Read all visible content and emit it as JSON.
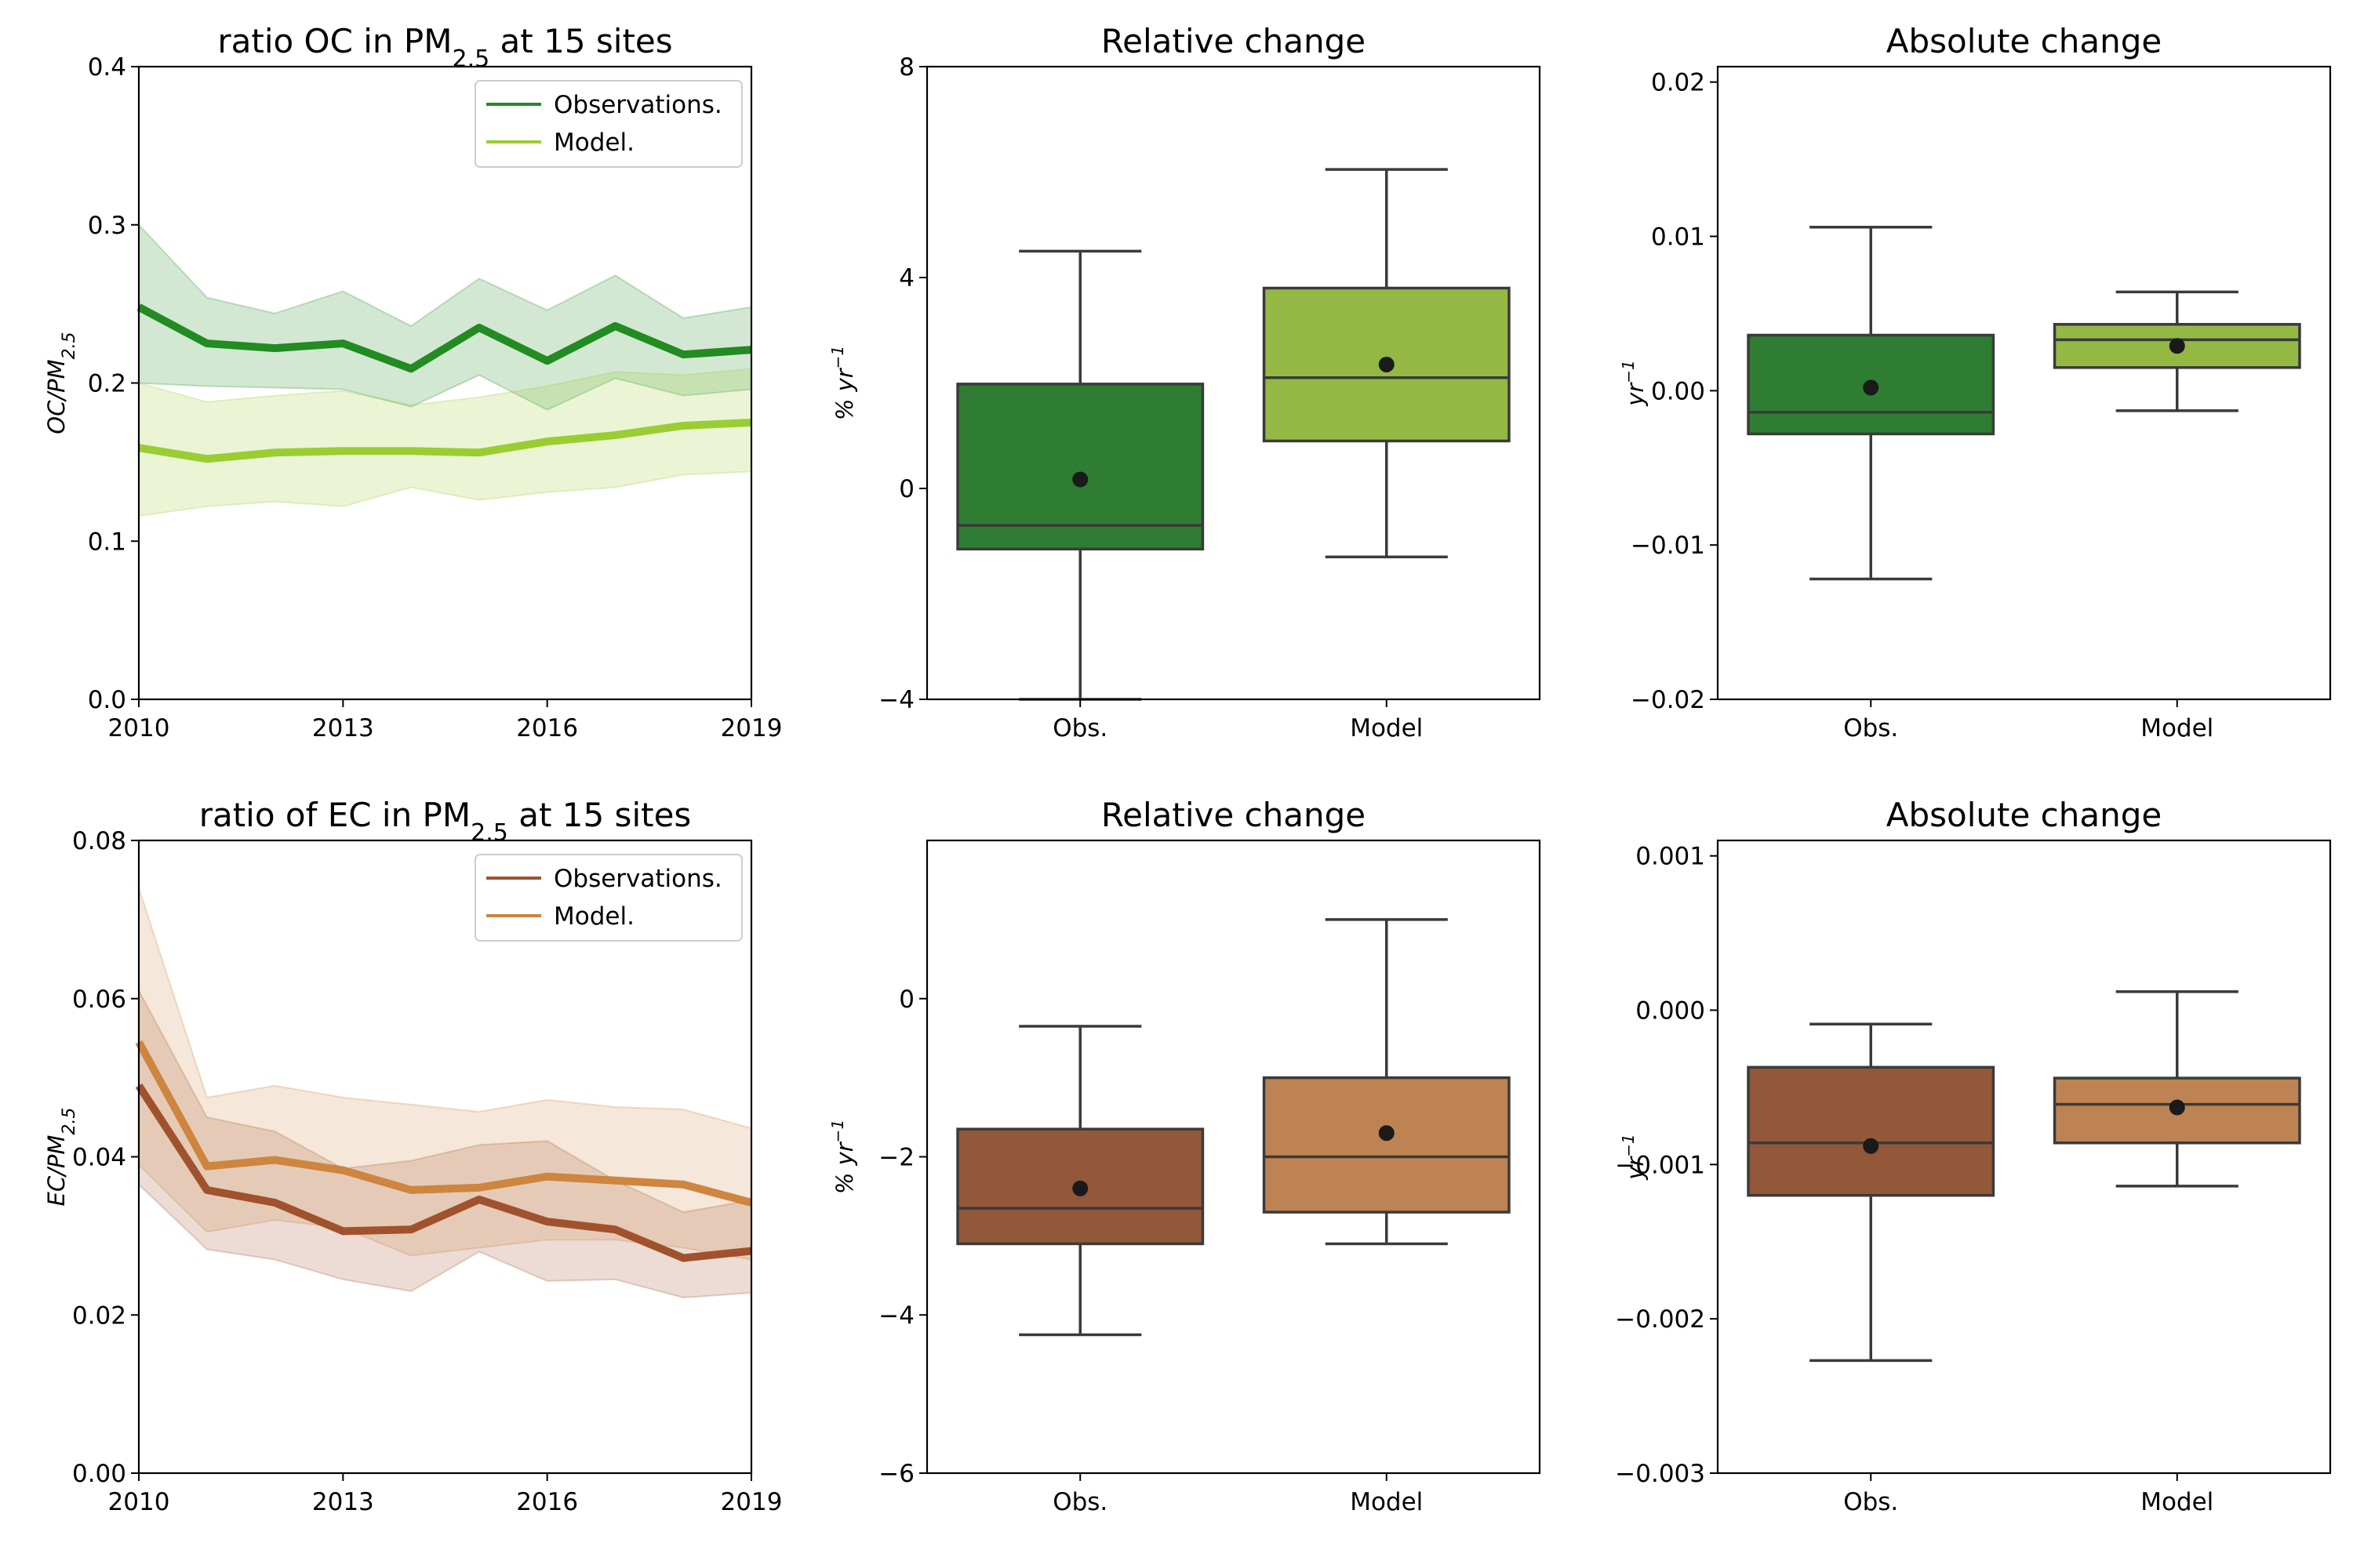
{
  "chart_data": [
    {
      "type": "line",
      "title": "ratio OC in PM",
      "title_sub": "2.5",
      "title_post": " at 15 sites",
      "ylabel": "OC/PM",
      "ylabel_sub": "2.5",
      "xlabel": "",
      "x": [
        2010,
        2011,
        2012,
        2013,
        2014,
        2015,
        2016,
        2017,
        2018,
        2019
      ],
      "xticks": [
        2010,
        2013,
        2016,
        2019
      ],
      "xlim": [
        2010,
        2019
      ],
      "ylim": [
        0.0,
        0.4
      ],
      "yticks": [
        "0.0",
        "0.1",
        "0.2",
        "0.3",
        "0.4"
      ],
      "legend_position": "top-right",
      "series": [
        {
          "name": "Observations.",
          "color": "#228b22",
          "values": [
            0.248,
            0.225,
            0.222,
            0.225,
            0.209,
            0.235,
            0.214,
            0.236,
            0.218,
            0.221
          ],
          "lower": [
            0.2,
            0.198,
            0.197,
            0.196,
            0.185,
            0.205,
            0.183,
            0.203,
            0.192,
            0.196
          ],
          "upper": [
            0.3,
            0.254,
            0.244,
            0.258,
            0.236,
            0.266,
            0.246,
            0.268,
            0.241,
            0.248
          ]
        },
        {
          "name": "Model.",
          "color": "#9acd32",
          "values": [
            0.159,
            0.152,
            0.156,
            0.157,
            0.157,
            0.156,
            0.163,
            0.167,
            0.173,
            0.175
          ],
          "lower": [
            0.116,
            0.122,
            0.125,
            0.122,
            0.134,
            0.126,
            0.131,
            0.134,
            0.142,
            0.144
          ],
          "upper": [
            0.2,
            0.188,
            0.192,
            0.195,
            0.186,
            0.191,
            0.198,
            0.207,
            0.205,
            0.209
          ]
        }
      ]
    },
    {
      "type": "box",
      "title": "Relative change",
      "ylabel": "% yr",
      "ylabel_sup": "−1",
      "categories": [
        "Obs.",
        "Model"
      ],
      "ylim": [
        -4,
        8
      ],
      "yticks": [
        "−4",
        "0",
        "4",
        "8"
      ],
      "boxes": [
        {
          "whislo": -4.0,
          "q1": -1.15,
          "med": -0.7,
          "q3": 1.98,
          "whishi": 4.5,
          "mean": 0.17,
          "color": "#2e7d32"
        },
        {
          "whislo": -1.3,
          "q1": 0.9,
          "med": 2.1,
          "q3": 3.8,
          "whishi": 6.05,
          "mean": 2.35,
          "color": "#93b944"
        }
      ]
    },
    {
      "type": "box",
      "title": "Absolute change",
      "ylabel": "yr",
      "ylabel_sup": "−1",
      "categories": [
        "Obs.",
        "Model"
      ],
      "ylim": [
        -0.02,
        0.021
      ],
      "yticks": [
        "−0.02",
        "−0.01",
        "0.00",
        "0.01",
        "0.02"
      ],
      "boxes": [
        {
          "whislo": -0.0122,
          "q1": -0.0028,
          "med": -0.0014,
          "q3": 0.0036,
          "whishi": 0.0106,
          "mean": 0.0002,
          "color": "#2e7d32"
        },
        {
          "whislo": -0.0013,
          "q1": 0.0015,
          "med": 0.0033,
          "q3": 0.0043,
          "whishi": 0.0064,
          "mean": 0.0029,
          "color": "#93b944"
        }
      ]
    },
    {
      "type": "line",
      "title": "ratio of EC in PM",
      "title_sub": "2.5",
      "title_post": " at 15 sites",
      "ylabel": "EC/PM",
      "ylabel_sub": "2.5",
      "xlabel": "",
      "x": [
        2010,
        2011,
        2012,
        2013,
        2014,
        2015,
        2016,
        2017,
        2018,
        2019
      ],
      "xticks": [
        2010,
        2013,
        2016,
        2019
      ],
      "xlim": [
        2010,
        2019
      ],
      "ylim": [
        0.0,
        0.08
      ],
      "yticks": [
        "0.00",
        "0.02",
        "0.04",
        "0.06",
        "0.08"
      ],
      "legend_position": "top-right",
      "series": [
        {
          "name": "Observations.",
          "color": "#a0522d",
          "values": [
            0.049,
            0.0358,
            0.0342,
            0.0306,
            0.0308,
            0.0346,
            0.0318,
            0.0308,
            0.0272,
            0.0281
          ],
          "lower": [
            0.0365,
            0.0283,
            0.027,
            0.0245,
            0.023,
            0.028,
            0.0243,
            0.0245,
            0.0222,
            0.0228
          ],
          "upper": [
            0.061,
            0.045,
            0.0432,
            0.0385,
            0.0395,
            0.0415,
            0.042,
            0.037,
            0.033,
            0.0345
          ]
        },
        {
          "name": "Model.",
          "color": "#cd853f",
          "values": [
            0.0545,
            0.0388,
            0.0396,
            0.0383,
            0.0358,
            0.0361,
            0.0375,
            0.037,
            0.0365,
            0.0342
          ],
          "lower": [
            0.039,
            0.0305,
            0.032,
            0.031,
            0.0275,
            0.0285,
            0.0295,
            0.0295,
            0.0285,
            0.027
          ],
          "upper": [
            0.074,
            0.0475,
            0.049,
            0.0475,
            0.0466,
            0.0457,
            0.0472,
            0.0463,
            0.046,
            0.0436
          ]
        }
      ]
    },
    {
      "type": "box",
      "title": "Relative change",
      "ylabel": "% yr",
      "ylabel_sup": "−1",
      "categories": [
        "Obs.",
        "Model"
      ],
      "ylim": [
        -6,
        2
      ],
      "yticks": [
        "−6",
        "−4",
        "−2",
        "0"
      ],
      "boxes": [
        {
          "whislo": -4.25,
          "q1": -3.1,
          "med": -2.65,
          "q3": -1.65,
          "whishi": -0.35,
          "mean": -2.4,
          "color": "#935839"
        },
        {
          "whislo": -3.1,
          "q1": -2.7,
          "med": -2.0,
          "q3": -1.0,
          "whishi": 1.0,
          "mean": -1.7,
          "color": "#bd8352"
        }
      ]
    },
    {
      "type": "box",
      "title": "Absolute change",
      "ylabel": "yr",
      "ylabel_sup": "−1",
      "categories": [
        "Obs.",
        "Model"
      ],
      "ylim": [
        -0.003,
        0.0011
      ],
      "yticks": [
        "−0.003",
        "−0.002",
        "−0.001",
        "0.000",
        "0.001"
      ],
      "boxes": [
        {
          "whislo": -0.00227,
          "q1": -0.0012,
          "med": -0.00086,
          "q3": -0.00037,
          "whishi": -9e-05,
          "mean": -0.00088,
          "color": "#935839"
        },
        {
          "whislo": -0.00114,
          "q1": -0.00086,
          "med": -0.00061,
          "q3": -0.00044,
          "whishi": 0.00012,
          "mean": -0.00063,
          "color": "#bd8352"
        }
      ]
    }
  ]
}
